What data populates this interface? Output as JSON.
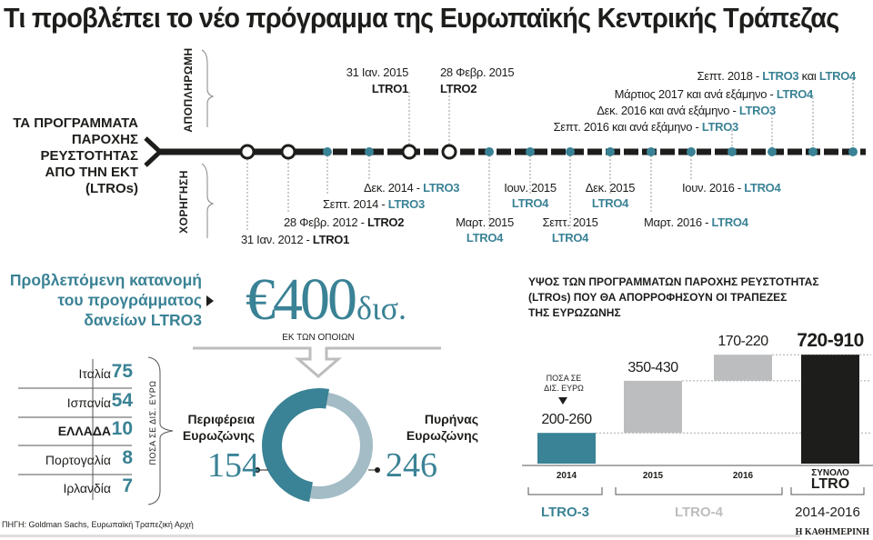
{
  "title": "Τι προβλέπει το νέο πρόγραμμα της Ευρωπαϊκής Κεντρικής Τράπεζας",
  "timeline": {
    "side_label": [
      "ΤΑ ΠΡΟΓΡΑΜΜΑΤΑ",
      "ΠΑΡΟΧΗΣ",
      "ΡΕΥΣΤΟΤΗΤΑΣ",
      "ΑΠΟ ΤΗΝ ΕΚΤ",
      "(LTROs)"
    ],
    "repayment_label": "ΑΠΟΠΛΗΡΩΜΗ",
    "allocation_label": "ΧΟΡΗΓΗΣΗ",
    "markers": [
      "open",
      "open",
      "dot",
      "dot",
      "open",
      "open",
      "dot",
      "dot",
      "dot",
      "dot",
      "dot",
      "dot",
      "dot",
      "dot",
      "dot",
      "dot"
    ],
    "top_labels": [
      {
        "lines": [
          [
            {
              "t": "31 Ιαν. 2015"
            }
          ],
          [
            {
              "t": "LTRO1",
              "s": "blk"
            }
          ]
        ]
      },
      {
        "lines": [
          [
            {
              "t": "28 Φεβρ. 2015"
            }
          ],
          [
            {
              "t": "LTRO2",
              "s": "blk"
            }
          ]
        ]
      },
      {
        "lines": [
          [
            {
              "t": "Σεπτ. 2018 - "
            },
            {
              "t": "LTRO3",
              "s": "teal"
            },
            {
              "t": " και "
            },
            {
              "t": "LTRO4",
              "s": "teal"
            }
          ]
        ]
      },
      {
        "lines": [
          [
            {
              "t": "Μάρτιος 2017 και ανά εξάμηνο - "
            },
            {
              "t": "LTRO4",
              "s": "teal"
            }
          ]
        ]
      },
      {
        "lines": [
          [
            {
              "t": "Δεκ. 2016 και ανά εξάμηνο - "
            },
            {
              "t": "LTRO3",
              "s": "teal"
            }
          ]
        ]
      },
      {
        "lines": [
          [
            {
              "t": "Σεπτ. 2016 και ανά εξάμηνο - "
            },
            {
              "t": "LTRO3",
              "s": "teal"
            }
          ]
        ]
      }
    ],
    "bottom_labels": [
      {
        "lines": [
          [
            {
              "t": "31 Ιαν. 2012 - "
            },
            {
              "t": "LTRO1",
              "s": "blk"
            }
          ]
        ]
      },
      {
        "lines": [
          [
            {
              "t": "28 Φεβρ. 2012 - "
            },
            {
              "t": "LTRO2",
              "s": "blk"
            }
          ]
        ]
      },
      {
        "lines": [
          [
            {
              "t": "Σεπτ. 2014 - "
            },
            {
              "t": "LTRO3",
              "s": "teal"
            }
          ]
        ]
      },
      {
        "lines": [
          [
            {
              "t": "Δεκ. 2014 - "
            },
            {
              "t": "LTRO3",
              "s": "teal"
            }
          ]
        ]
      },
      {
        "lines": [
          [
            {
              "t": "Μαρτ. 2015"
            }
          ],
          [
            {
              "t": "LTRO4",
              "s": "teal"
            }
          ]
        ]
      },
      {
        "lines": [
          [
            {
              "t": "Ιουν. 2015"
            }
          ],
          [
            {
              "t": "LTRO4",
              "s": "teal"
            }
          ]
        ]
      },
      {
        "lines": [
          [
            {
              "t": "Σεπτ. 2015"
            }
          ],
          [
            {
              "t": "LTRO4",
              "s": "teal"
            }
          ]
        ]
      },
      {
        "lines": [
          [
            {
              "t": "Δεκ. 2015"
            }
          ],
          [
            {
              "t": "LTRO4",
              "s": "teal"
            }
          ]
        ]
      },
      {
        "lines": [
          [
            {
              "t": "Μαρτ. 2016 - "
            },
            {
              "t": "LTRO4",
              "s": "teal"
            }
          ]
        ]
      },
      {
        "lines": [
          [
            {
              "t": "Ιουν. 2016 - "
            },
            {
              "t": "LTRO4",
              "s": "teal"
            }
          ]
        ]
      }
    ]
  },
  "ltro3": {
    "heading": [
      "Προβλεπόμενη κατανομή",
      "του προγράμματος",
      "δανείων LTRO3"
    ],
    "total": "€400",
    "total_unit": "δισ.",
    "of_which": "ΕΚ ΤΩΝ ΟΠΟΙΩΝ",
    "units_note": "ΠΟΣΑ ΣΕ ΔΙΣ. ΕΥΡΩ",
    "countries": [
      {
        "name": "Ιταλία",
        "value": "75"
      },
      {
        "name": "Ισπανία",
        "value": "54"
      },
      {
        "name": "ΕΛΛΑΔΑ",
        "value": "10"
      },
      {
        "name": "Πορτογαλία",
        "value": "8"
      },
      {
        "name": "Ιρλανδία",
        "value": "7"
      }
    ],
    "periphery": {
      "label": [
        "Περιφέρεια",
        "Ευρωζώνης"
      ],
      "value": "154"
    },
    "core": {
      "label": [
        "Πυρήνας",
        "Ευρωζώνης"
      ],
      "value": "246"
    },
    "source": "ΠΗΓΗ: Goldman Sachs, Ευρωπαϊκή Τραπεζική Αρχή"
  },
  "chart_data": {
    "type": "bar",
    "title": [
      "ΥΨΟΣ ΤΩΝ ΠΡΟΓΡΑΜΜΑΤΩΝ ΠΑΡΟΧΗΣ ΡΕΥΣΤΟΤΗΤΑΣ",
      "(LTROs) ΠΟΥ ΘΑ ΑΠΟΡΡΟΦΗΣΟΥΝ ΟΙ ΤΡΑΠΕΖΕΣ",
      "ΤΗΣ ΕΥΡΩΖΩΝΗΣ"
    ],
    "unit_note": [
      "ΠΟΣΑ ΣΕ",
      "ΔΙΣ. ΕΥΡΩ"
    ],
    "categories": [
      "2014",
      "2015",
      "2016",
      "ΣΥΝΟΛΟ"
    ],
    "total_sublabel": "LTRO",
    "ranges": [
      [
        200,
        260
      ],
      [
        350,
        430
      ],
      [
        170,
        220
      ],
      [
        720,
        910
      ]
    ],
    "value_labels": [
      "200-260",
      "350-430",
      "170-220",
      "720-910"
    ],
    "colors": [
      "#3a8295",
      "#bcbdbf",
      "#bcbdbf",
      "#1d1d1b"
    ],
    "groups": [
      {
        "label": "LTRO-3",
        "color": "#3a8295"
      },
      {
        "label": "LTRO-4",
        "color": "#bcbdbf"
      },
      {
        "label": "2014-2016",
        "color": "#1d1d1b"
      }
    ]
  },
  "footer_logo": "Η ΚΑΘΗΜΕΡΙΝΗ",
  "colors": {
    "teal": "#3a8295",
    "light_teal": "#a3bcc6",
    "gray": "#bcbdbf",
    "black": "#1d1d1b"
  }
}
